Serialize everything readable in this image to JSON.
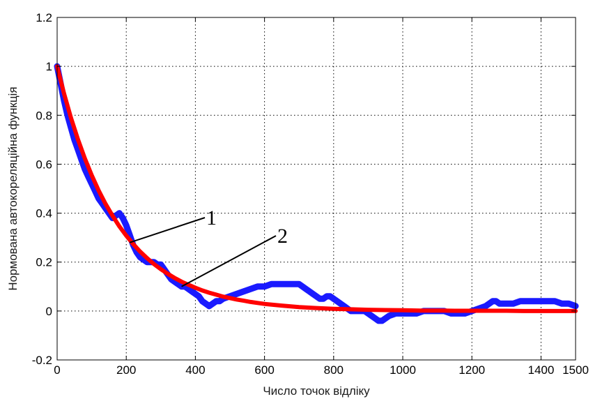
{
  "chart_data": {
    "type": "line",
    "title": "",
    "xlabel": "Число точок відліку",
    "ylabel": "Нормована автокореляційна функція",
    "xlim": [
      0,
      1500
    ],
    "ylim": [
      -0.2,
      1.2
    ],
    "x_ticks": [
      0,
      200,
      400,
      600,
      800,
      1000,
      1200,
      1400,
      1500
    ],
    "x_tick_labels": [
      "0",
      "200",
      "400",
      "600",
      "800",
      "1000",
      "1200",
      "1400",
      "1500"
    ],
    "y_ticks": [
      -0.2,
      0,
      0.2,
      0.4,
      0.6,
      0.8,
      1,
      1.2
    ],
    "y_tick_labels": [
      "-0.2",
      "0",
      "0.2",
      "0.4",
      "0.6",
      "0.8",
      "1",
      "1.2"
    ],
    "grid": true,
    "series": [
      {
        "color": "#1a1aff",
        "marker": "+",
        "x": [
          0,
          10,
          20,
          30,
          40,
          50,
          60,
          70,
          80,
          90,
          100,
          110,
          120,
          130,
          140,
          150,
          160,
          170,
          180,
          190,
          200,
          210,
          220,
          230,
          240,
          250,
          260,
          270,
          280,
          290,
          300,
          310,
          320,
          330,
          340,
          350,
          360,
          370,
          380,
          390,
          400,
          410,
          420,
          430,
          440,
          450,
          460,
          470,
          480,
          500,
          520,
          540,
          560,
          580,
          600,
          620,
          640,
          660,
          680,
          700,
          710,
          720,
          730,
          740,
          750,
          760,
          770,
          780,
          790,
          800,
          810,
          820,
          830,
          840,
          850,
          860,
          870,
          880,
          890,
          900,
          910,
          920,
          930,
          940,
          950,
          960,
          980,
          1000,
          1020,
          1040,
          1060,
          1080,
          1100,
          1120,
          1140,
          1160,
          1180,
          1200,
          1220,
          1240,
          1250,
          1260,
          1270,
          1280,
          1300,
          1320,
          1340,
          1360,
          1380,
          1400,
          1420,
          1440,
          1460,
          1480,
          1500
        ],
        "y": [
          1.0,
          0.93,
          0.86,
          0.8,
          0.75,
          0.7,
          0.66,
          0.62,
          0.58,
          0.55,
          0.52,
          0.49,
          0.46,
          0.44,
          0.42,
          0.4,
          0.38,
          0.39,
          0.4,
          0.38,
          0.35,
          0.31,
          0.27,
          0.24,
          0.22,
          0.21,
          0.2,
          0.2,
          0.2,
          0.19,
          0.19,
          0.17,
          0.15,
          0.13,
          0.12,
          0.11,
          0.1,
          0.1,
          0.09,
          0.08,
          0.07,
          0.06,
          0.04,
          0.03,
          0.02,
          0.03,
          0.04,
          0.04,
          0.05,
          0.06,
          0.07,
          0.08,
          0.09,
          0.1,
          0.1,
          0.11,
          0.11,
          0.11,
          0.11,
          0.11,
          0.1,
          0.09,
          0.08,
          0.07,
          0.06,
          0.05,
          0.05,
          0.06,
          0.06,
          0.05,
          0.04,
          0.03,
          0.02,
          0.01,
          0.0,
          0.0,
          0.0,
          0.0,
          0.0,
          -0.01,
          -0.02,
          -0.03,
          -0.04,
          -0.04,
          -0.03,
          -0.02,
          -0.01,
          -0.01,
          -0.01,
          -0.01,
          0.0,
          0.0,
          0.0,
          0.0,
          -0.01,
          -0.01,
          -0.01,
          0.0,
          0.01,
          0.02,
          0.03,
          0.04,
          0.04,
          0.03,
          0.03,
          0.03,
          0.04,
          0.04,
          0.04,
          0.04,
          0.04,
          0.04,
          0.03,
          0.03,
          0.02
        ]
      },
      {
        "color": "#ff0000",
        "x": [
          0,
          20,
          40,
          60,
          80,
          100,
          120,
          140,
          160,
          180,
          200,
          220,
          240,
          260,
          280,
          300,
          320,
          340,
          360,
          380,
          400,
          420,
          440,
          460,
          480,
          500,
          520,
          540,
          560,
          580,
          600,
          650,
          700,
          750,
          800,
          850,
          900,
          950,
          1000,
          1050,
          1100,
          1150,
          1200,
          1250,
          1300,
          1350,
          1400,
          1450,
          1500
        ],
        "y": [
          1.0,
          0.889,
          0.79,
          0.702,
          0.624,
          0.555,
          0.493,
          0.438,
          0.39,
          0.346,
          0.308,
          0.274,
          0.243,
          0.216,
          0.192,
          0.171,
          0.152,
          0.135,
          0.12,
          0.107,
          0.095,
          0.084,
          0.075,
          0.067,
          0.059,
          0.053,
          0.047,
          0.042,
          0.037,
          0.033,
          0.029,
          0.022,
          0.016,
          0.012,
          0.009,
          0.007,
          0.005,
          0.004,
          0.003,
          0.002,
          0.002,
          0.001,
          0.001,
          0.001,
          0.001,
          0.0,
          0.0,
          0.0,
          0.0
        ]
      }
    ],
    "annotations": [
      {
        "text": "1",
        "target_x": 210,
        "target_y": 0.28
      },
      {
        "text": "2",
        "target_x": 360,
        "target_y": 0.1
      }
    ]
  }
}
